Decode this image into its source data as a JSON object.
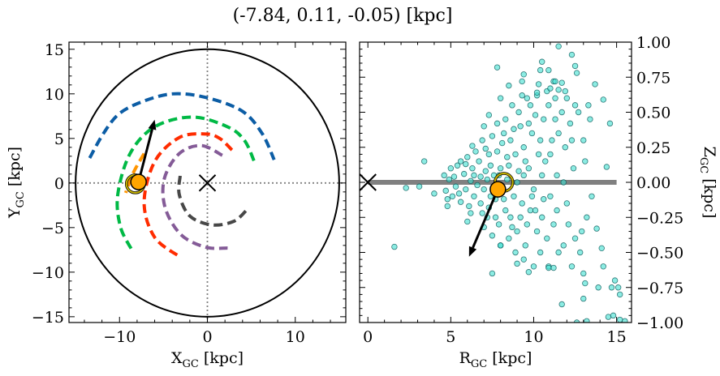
{
  "title": "(-7.84, 0.11, -0.05) [kpc]",
  "chart_data": [
    {
      "type": "line",
      "xlabel": {
        "main": "X",
        "sub": "GC",
        "unit": " [kpc]"
      },
      "ylabel": {
        "main": "Y",
        "sub": "GC",
        "unit": " [kpc]"
      },
      "xlim": [
        -15.75,
        15.75
      ],
      "ylim": [
        -15.65,
        15.8
      ],
      "xticks": [
        -10,
        0,
        10
      ],
      "yticks": [
        -15,
        -10,
        -5,
        0,
        5,
        10,
        15
      ],
      "xtick_labels": [
        "−10",
        "0",
        "10"
      ],
      "ytick_labels": [
        "−15",
        "−10",
        "−5",
        "0",
        "5",
        "10",
        "15"
      ],
      "boundary_circle_radius": 15,
      "reference_lines": {
        "x": 0,
        "y": 0,
        "style": "dotted",
        "color": "#808080"
      },
      "center_marker": {
        "x": 0,
        "y": 0,
        "marker": "x"
      },
      "series": [
        {
          "color": "#0c5da5",
          "style": "dashed",
          "points": [
            [
              -13.4,
              2.8
            ],
            [
              -11.8,
              5.6
            ],
            [
              -10.0,
              7.8
            ],
            [
              -7.2,
              9.2
            ],
            [
              -3.9,
              10.0
            ],
            [
              -0.2,
              9.6
            ],
            [
              3.9,
              8.1
            ],
            [
              6.2,
              5.6
            ],
            [
              7.6,
              2.6
            ]
          ]
        },
        {
          "color": "#00b945",
          "style": "dashed",
          "points": [
            [
              5.3,
              2.5
            ],
            [
              4.2,
              4.8
            ],
            [
              2.3,
              6.3
            ],
            [
              -1.7,
              7.4
            ],
            [
              -6.0,
              6.3
            ],
            [
              -8.8,
              3.3
            ],
            [
              -10.2,
              -1.3
            ],
            [
              -9.9,
              -4.9
            ],
            [
              -8.6,
              -7.5
            ]
          ]
        },
        {
          "color": "#ff2c00",
          "style": "dashed",
          "points": [
            [
              2.8,
              3.7
            ],
            [
              1.4,
              5.0
            ],
            [
              -0.2,
              5.5
            ],
            [
              -3.2,
              5.1
            ],
            [
              -6.0,
              2.4
            ],
            [
              -7.2,
              -2.2
            ],
            [
              -6.0,
              -6.1
            ],
            [
              -3.1,
              -8.3
            ]
          ]
        },
        {
          "color": "#845b97",
          "style": "dashed",
          "points": [
            [
              1.7,
              3.1
            ],
            [
              -0.7,
              4.2
            ],
            [
              -3.2,
              3.3
            ],
            [
              -4.9,
              0.5
            ],
            [
              -4.8,
              -2.8
            ],
            [
              -3.0,
              -5.8
            ],
            [
              -0.2,
              -7.2
            ],
            [
              2.3,
              -7.3
            ]
          ]
        },
        {
          "color": "#474747",
          "style": "dashed",
          "points": [
            [
              -3.1,
              0.8
            ],
            [
              -3.2,
              -1.3
            ],
            [
              -2.0,
              -3.7
            ],
            [
              0.5,
              -4.7
            ],
            [
              3.0,
              -4.3
            ],
            [
              4.5,
              -3.0
            ]
          ]
        },
        {
          "color": "#ff9500",
          "style": "dashed",
          "points": [
            [
              -7.2,
              3.3
            ],
            [
              -8.4,
              1.2
            ],
            [
              -9.3,
              -1.1
            ]
          ]
        }
      ],
      "sun": {
        "x": -7.84,
        "y": 0.11,
        "color": "#ffa500"
      },
      "ring": {
        "x": -8.2,
        "y": -0.1,
        "color": "#c8b400"
      },
      "arrow": {
        "from": [
          -7.84,
          0.11
        ],
        "to": [
          -6.0,
          7.1
        ]
      }
    },
    {
      "type": "scatter",
      "xlabel": {
        "main": "R",
        "sub": "GC",
        "unit": " [kpc]"
      },
      "ylabel": {
        "main": "Z",
        "sub": "GC",
        "unit": " [kpc]"
      },
      "xlim": [
        -0.5,
        15.9
      ],
      "ylim": [
        -1.0,
        1.0
      ],
      "xticks": [
        0,
        5,
        10,
        15
      ],
      "yticks": [
        1.0,
        0.75,
        0.5,
        0.25,
        0.0,
        -0.25,
        -0.5,
        -0.75,
        -1.0
      ],
      "xtick_labels": [
        "0",
        "5",
        "10",
        "15"
      ],
      "ytick_labels": [
        "1.00",
        "0.75",
        "0.50",
        "0.25",
        "0.00",
        "−0.25",
        "−0.50",
        "−0.75",
        "−1.00"
      ],
      "disk_line": {
        "x": [
          0,
          15
        ],
        "y": 0,
        "color": "#808080"
      },
      "center_marker": {
        "x": 0,
        "y": 0,
        "marker": "x"
      },
      "point_color": "#40e0d0",
      "point_edge": "#0a5a5a",
      "points": [
        [
          4.6,
          0.05
        ],
        [
          4.7,
          -0.06
        ],
        [
          4.9,
          0.02
        ],
        [
          5.0,
          0.1
        ],
        [
          5.1,
          -0.1
        ],
        [
          5.2,
          0.04
        ],
        [
          5.3,
          -0.03
        ],
        [
          5.4,
          0.12
        ],
        [
          5.5,
          -0.08
        ],
        [
          4.8,
          -0.12
        ],
        [
          5.6,
          0.15
        ],
        [
          5.6,
          -0.14
        ],
        [
          5.8,
          0.06
        ],
        [
          5.9,
          -0.05
        ],
        [
          6.0,
          0.18
        ],
        [
          6.1,
          -0.17
        ],
        [
          6.2,
          0.01
        ],
        [
          6.3,
          0.1
        ],
        [
          6.4,
          -0.1
        ],
        [
          6.5,
          0.22
        ],
        [
          5.9,
          0.13
        ],
        [
          6.2,
          -0.22
        ],
        [
          6.6,
          -0.02
        ],
        [
          6.0,
          -0.28
        ],
        [
          6.3,
          0.26
        ],
        [
          6.4,
          0.05
        ],
        [
          6.7,
          0.15
        ],
        [
          6.8,
          -0.15
        ],
        [
          6.9,
          0.3
        ],
        [
          7.0,
          -0.05
        ],
        [
          7.1,
          0.08
        ],
        [
          7.2,
          -0.25
        ],
        [
          7.3,
          0.2
        ],
        [
          7.4,
          -0.1
        ],
        [
          7.5,
          0.33
        ],
        [
          6.8,
          0.04
        ],
        [
          7.0,
          -0.32
        ],
        [
          7.2,
          0.02
        ],
        [
          7.4,
          0.12
        ],
        [
          6.9,
          -0.22
        ],
        [
          7.1,
          0.24
        ],
        [
          7.3,
          -0.18
        ],
        [
          7.5,
          -0.38
        ],
        [
          7.6,
          0.05
        ],
        [
          7.0,
          0.4
        ],
        [
          7.3,
          0.48
        ],
        [
          7.7,
          -0.12
        ],
        [
          7.8,
          0.22
        ],
        [
          7.9,
          -0.3
        ],
        [
          8.0,
          0.1
        ],
        [
          8.1,
          -0.05
        ],
        [
          8.2,
          0.35
        ],
        [
          8.3,
          -0.2
        ],
        [
          8.4,
          0.18
        ],
        [
          8.5,
          -0.4
        ],
        [
          7.8,
          0.42
        ],
        [
          8.0,
          -0.45
        ],
        [
          8.2,
          -0.12
        ],
        [
          8.4,
          0.02
        ],
        [
          8.1,
          0.28
        ],
        [
          7.9,
          0.05
        ],
        [
          8.3,
          0.45
        ],
        [
          8.5,
          0.12
        ],
        [
          7.7,
          -0.25
        ],
        [
          8.6,
          -0.25
        ],
        [
          8.6,
          0.3
        ],
        [
          8.7,
          0.55
        ],
        [
          8.0,
          0.6
        ],
        [
          8.8,
          -0.1
        ],
        [
          8.9,
          0.2
        ],
        [
          9.0,
          -0.35
        ],
        [
          9.1,
          0.08
        ],
        [
          9.2,
          0.4
        ],
        [
          9.3,
          -0.15
        ],
        [
          9.4,
          0.25
        ],
        [
          9.5,
          -0.45
        ],
        [
          8.8,
          0.38
        ],
        [
          9.0,
          0.0
        ],
        [
          9.2,
          -0.25
        ],
        [
          9.4,
          0.05
        ],
        [
          8.9,
          -0.5
        ],
        [
          9.1,
          0.5
        ],
        [
          9.3,
          0.62
        ],
        [
          9.5,
          0.15
        ],
        [
          8.7,
          -0.32
        ],
        [
          9.6,
          -0.3
        ],
        [
          9.0,
          -0.58
        ],
        [
          9.4,
          -0.55
        ],
        [
          9.7,
          0.1
        ],
        [
          9.8,
          -0.2
        ],
        [
          9.9,
          0.35
        ],
        [
          10.0,
          -0.05
        ],
        [
          10.1,
          0.48
        ],
        [
          10.2,
          -0.35
        ],
        [
          10.3,
          0.2
        ],
        [
          10.4,
          -0.5
        ],
        [
          10.5,
          0.05
        ],
        [
          9.8,
          0.55
        ],
        [
          10.0,
          -0.6
        ],
        [
          10.2,
          0.62
        ],
        [
          10.4,
          0.3
        ],
        [
          9.9,
          -0.1
        ],
        [
          10.1,
          -0.2
        ],
        [
          10.3,
          0.7
        ],
        [
          10.5,
          -0.25
        ],
        [
          9.7,
          0.42
        ],
        [
          10.6,
          0.45
        ],
        [
          10.6,
          -0.12
        ],
        [
          10.7,
          0.15
        ],
        [
          10.8,
          -0.4
        ],
        [
          10.9,
          0.55
        ],
        [
          11.0,
          -0.1
        ],
        [
          11.1,
          0.3
        ],
        [
          11.2,
          -0.3
        ],
        [
          11.3,
          0.45
        ],
        [
          11.4,
          0.05
        ],
        [
          11.5,
          -0.5
        ],
        [
          10.8,
          0.65
        ],
        [
          11.0,
          0.2
        ],
        [
          11.2,
          0.72
        ],
        [
          11.4,
          -0.2
        ],
        [
          10.9,
          -0.6
        ],
        [
          11.3,
          0.6
        ],
        [
          11.5,
          0.35
        ],
        [
          11.7,
          0.5
        ],
        [
          11.8,
          -0.45
        ],
        [
          11.9,
          0.25
        ],
        [
          12.0,
          0.6
        ],
        [
          12.1,
          -0.3
        ],
        [
          12.2,
          0.42
        ],
        [
          12.3,
          -0.6
        ],
        [
          12.4,
          0.1
        ],
        [
          12.5,
          0.55
        ],
        [
          11.8,
          0.0
        ],
        [
          12.0,
          -0.15
        ],
        [
          12.3,
          0.3
        ],
        [
          12.5,
          -0.4
        ],
        [
          12.7,
          0.5
        ],
        [
          12.8,
          -0.5
        ],
        [
          13.0,
          0.3
        ],
        [
          13.1,
          0.15
        ],
        [
          13.2,
          -0.25
        ],
        [
          13.4,
          0.45
        ],
        [
          12.9,
          -0.35
        ],
        [
          13.3,
          0.55
        ],
        [
          13.5,
          -0.1
        ],
        [
          11.5,
          0.97
        ],
        [
          12.3,
          0.91
        ],
        [
          10.5,
          0.86
        ],
        [
          7.8,
          0.82
        ],
        [
          10.9,
          0.8
        ],
        [
          10.4,
          0.8
        ],
        [
          9.4,
          0.77
        ],
        [
          9.3,
          0.72
        ],
        [
          12.5,
          0.83
        ],
        [
          12.6,
          0.78
        ],
        [
          8.5,
          0.69
        ],
        [
          13.7,
          0.7
        ],
        [
          11.3,
          0.72
        ],
        [
          11.7,
          0.71
        ],
        [
          11.0,
          0.67
        ],
        [
          11.5,
          0.66
        ],
        [
          11.9,
          0.65
        ],
        [
          10.2,
          0.64
        ],
        [
          14.2,
          0.59
        ],
        [
          9.6,
          0.6
        ],
        [
          14.6,
          0.42
        ],
        [
          14.4,
          0.11
        ],
        [
          1.6,
          -0.46
        ],
        [
          7.5,
          -0.65
        ],
        [
          9.7,
          -0.64
        ],
        [
          11.7,
          -0.87
        ],
        [
          13.9,
          -0.75
        ],
        [
          14.7,
          -0.75
        ],
        [
          15.1,
          -0.75
        ],
        [
          14.9,
          -0.7
        ],
        [
          15.2,
          -0.8
        ],
        [
          14.5,
          -0.96
        ],
        [
          14.8,
          -0.95
        ],
        [
          15.2,
          -0.98
        ],
        [
          15.5,
          -0.99
        ],
        [
          13.0,
          -0.83
        ],
        [
          13.1,
          -0.72
        ],
        [
          13.0,
          -0.65
        ],
        [
          14.2,
          -0.6
        ],
        [
          14.1,
          -0.47
        ],
        [
          13.8,
          -0.33
        ],
        [
          12.6,
          -1.0
        ],
        [
          13.2,
          -0.99
        ],
        [
          11.2,
          -0.61
        ],
        [
          10.9,
          -0.61
        ],
        [
          8.0,
          -0.45
        ],
        [
          2.3,
          -0.04
        ],
        [
          3.1,
          -0.03
        ],
        [
          4.0,
          -0.08
        ],
        [
          3.4,
          0.15
        ],
        [
          4.8,
          -0.17
        ]
      ],
      "sun": {
        "x": 7.84,
        "y": -0.05,
        "color": "#ffa500"
      },
      "ring": {
        "x": 8.2,
        "y": 0.0,
        "color": "#c8b400"
      },
      "arrow": {
        "from": [
          7.84,
          -0.05
        ],
        "to": [
          6.1,
          -0.53
        ]
      }
    }
  ]
}
